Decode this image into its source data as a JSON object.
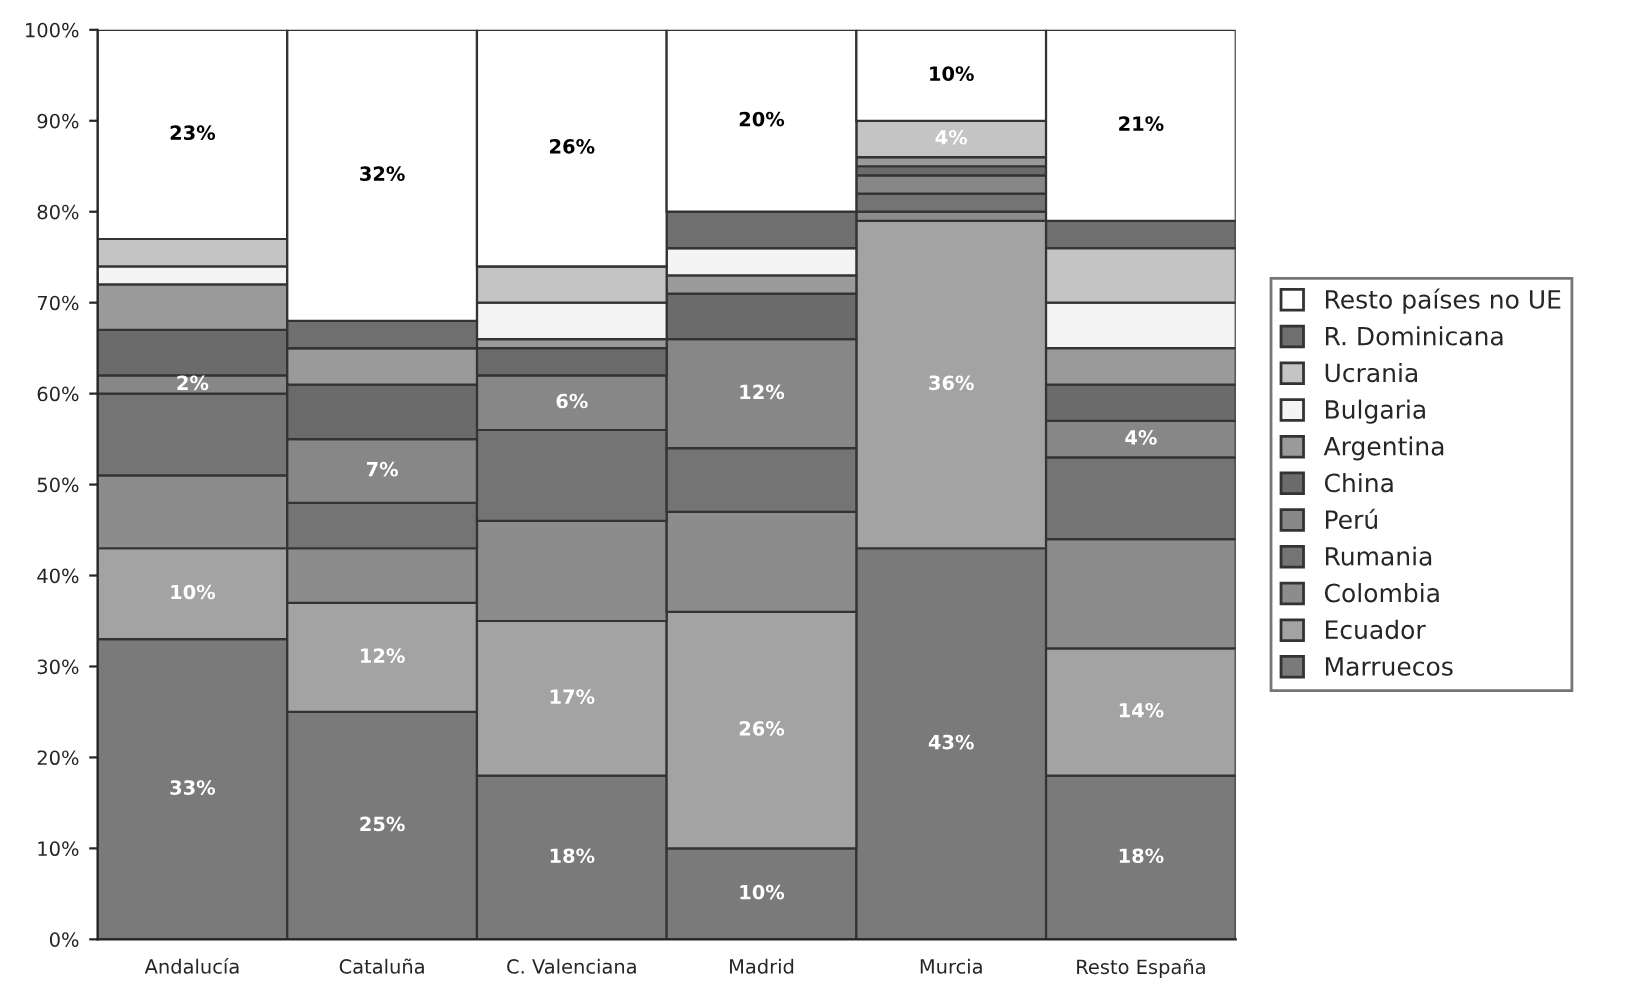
{
  "chart_data": {
    "type": "bar",
    "stacked": true,
    "categories": [
      "Andalucía",
      "Cataluña",
      "C. Valenciana",
      "Madrid",
      "Murcia",
      "Resto España"
    ],
    "ylim": [
      0,
      100
    ],
    "yticks": [
      {
        "value": 0,
        "label": "0%"
      },
      {
        "value": 10,
        "label": "10%"
      },
      {
        "value": 20,
        "label": "20%"
      },
      {
        "value": 30,
        "label": "30%"
      },
      {
        "value": 40,
        "label": "40%"
      },
      {
        "value": 50,
        "label": "50%"
      },
      {
        "value": 60,
        "label": "60%"
      },
      {
        "value": 70,
        "label": "70%"
      },
      {
        "value": 80,
        "label": "80%"
      },
      {
        "value": 90,
        "label": "90%"
      },
      {
        "value": 100,
        "label": "100%"
      }
    ],
    "grid": false,
    "legend": "right",
    "series": [
      {
        "name": "Marruecos",
        "color": "#7a7a7a",
        "values": [
          33,
          25,
          18,
          10,
          43,
          18
        ],
        "value_labels": [
          "33%",
          "25%",
          "18%",
          "10%",
          "43%",
          "18%"
        ]
      },
      {
        "name": "Ecuador",
        "color": "#a3a3a3",
        "values": [
          10,
          12,
          17,
          26,
          36,
          14
        ],
        "value_labels": [
          "10%",
          "12%",
          "17%",
          "26%",
          "36%",
          "14%"
        ]
      },
      {
        "name": "Colombia",
        "color": "#8c8c8c",
        "values": [
          8,
          6,
          11,
          11,
          1,
          12
        ],
        "value_labels": [
          null,
          null,
          null,
          null,
          null,
          null
        ]
      },
      {
        "name": "Rumania",
        "color": "#747474",
        "values": [
          9,
          5,
          10,
          7,
          2,
          9
        ],
        "value_labels": [
          null,
          null,
          null,
          null,
          null,
          null
        ]
      },
      {
        "name": "Perú",
        "color": "#878787",
        "values": [
          2,
          7,
          6,
          12,
          2,
          4
        ],
        "value_labels": [
          "2%",
          "7%",
          "6%",
          "12%",
          null,
          "4%"
        ]
      },
      {
        "name": "China",
        "color": "#6b6b6b",
        "values": [
          5,
          6,
          3,
          5,
          1,
          4
        ],
        "value_labels": [
          null,
          null,
          null,
          null,
          null,
          null
        ]
      },
      {
        "name": "Argentina",
        "color": "#9a9a9a",
        "values": [
          5,
          4,
          1,
          2,
          1,
          4
        ],
        "value_labels": [
          null,
          null,
          null,
          null,
          null,
          null
        ]
      },
      {
        "name": "Bulgaria",
        "color": "#f4f4f4",
        "values": [
          2,
          0,
          4,
          3,
          0,
          5
        ],
        "value_labels": [
          null,
          null,
          null,
          null,
          null,
          null
        ]
      },
      {
        "name": "Ucrania",
        "color": "#c4c4c4",
        "values": [
          3,
          0,
          4,
          0,
          4,
          6
        ],
        "value_labels": [
          null,
          null,
          null,
          null,
          "4%",
          null
        ]
      },
      {
        "name": "R. Dominicana",
        "color": "#6f6f6f",
        "values": [
          0,
          3,
          0,
          4,
          0,
          3
        ],
        "value_labels": [
          null,
          null,
          null,
          null,
          null,
          null
        ]
      },
      {
        "name": "Resto países no UE",
        "color": "#ffffff",
        "values": [
          23,
          32,
          26,
          20,
          10,
          21
        ],
        "value_labels": [
          "23%",
          "32%",
          "26%",
          "20%",
          "10%",
          "21%"
        ]
      }
    ]
  }
}
